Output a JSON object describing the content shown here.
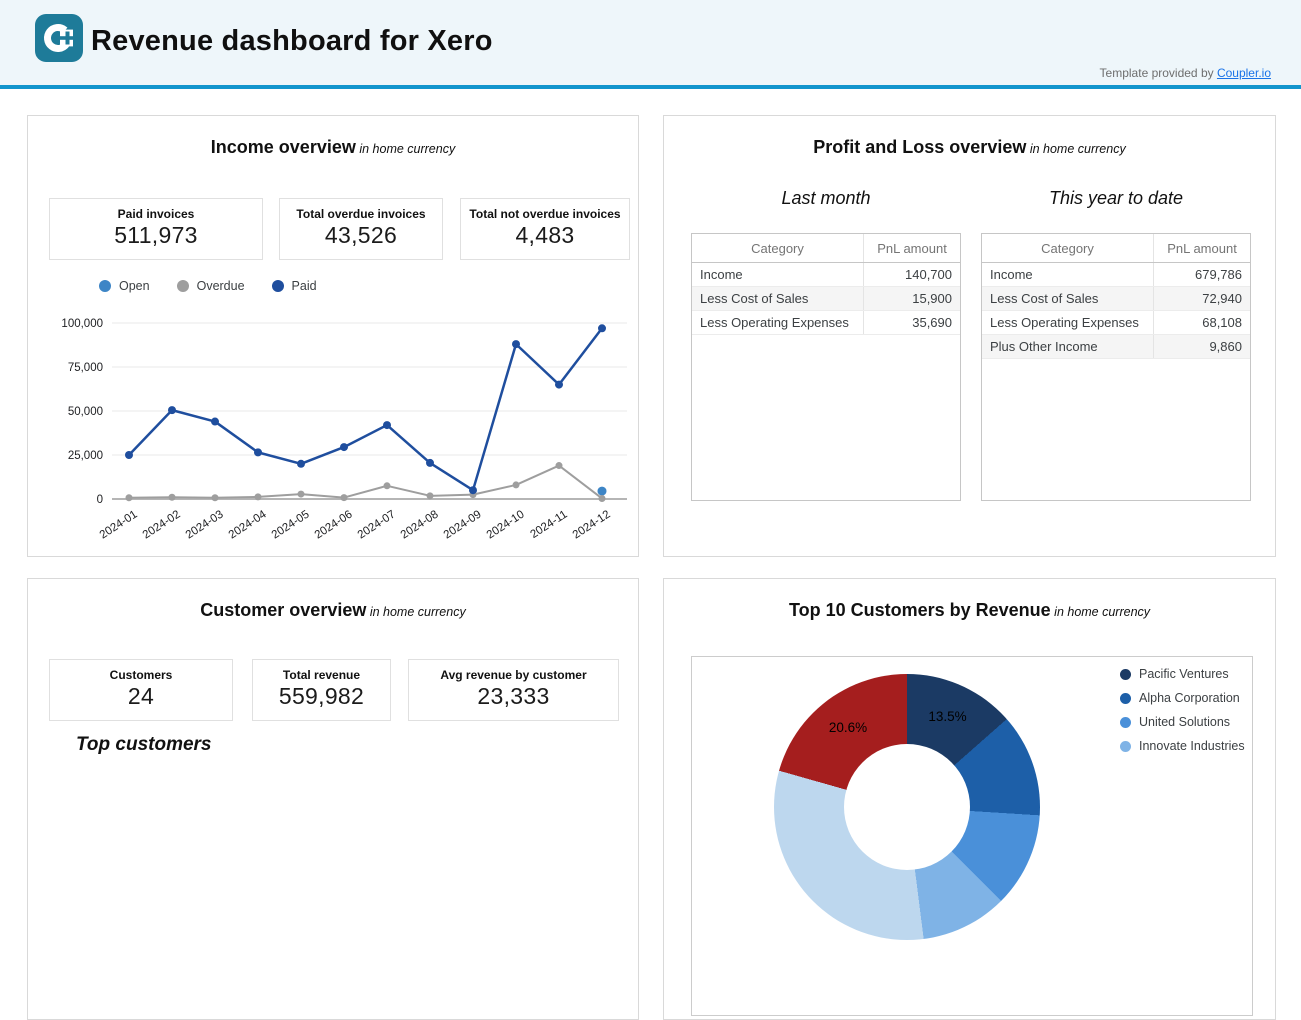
{
  "header": {
    "title": "Revenue dashboard for Xero",
    "template_note": "Template provided by ",
    "template_link_label": "Coupler.io",
    "colors": {
      "header_bg": "#eef6fa",
      "rule": "#1295cd",
      "logo_bg": "#1e7b99",
      "link": "#1a73e8"
    }
  },
  "panels": {
    "income": {
      "title": "Income overview",
      "subtitle": " in home currency",
      "scorecards": [
        {
          "label": "Paid invoices",
          "value": "511,973"
        },
        {
          "label": "Total overdue invoices",
          "value": "43,526"
        },
        {
          "label": "Total not overdue invoices",
          "value": "4,483"
        }
      ]
    },
    "pnl": {
      "title": "Profit and Loss overview",
      "subtitle": " in home currency",
      "tables": [
        {
          "caption": "Last month",
          "columns": [
            "Category",
            "PnL amount"
          ],
          "rows": [
            [
              "Income",
              "140,700"
            ],
            [
              "Less Cost of Sales",
              "15,900"
            ],
            [
              "Less Operating Expenses",
              "35,690"
            ]
          ]
        },
        {
          "caption": "This year to date",
          "columns": [
            "Category",
            "PnL amount"
          ],
          "rows": [
            [
              "Income",
              "679,786"
            ],
            [
              "Less Cost of Sales",
              "72,940"
            ],
            [
              "Less Operating Expenses",
              "68,108"
            ],
            [
              "Plus Other Income",
              "9,860"
            ]
          ]
        }
      ]
    },
    "customers": {
      "title": "Customer overview",
      "subtitle": " in home currency",
      "scorecards": [
        {
          "label": "Customers",
          "value": "24"
        },
        {
          "label": "Total revenue",
          "value": "559,982"
        },
        {
          "label": "Avg revenue by customer",
          "value": "23,333"
        }
      ],
      "section_label": "Top customers"
    },
    "top_customers": {
      "title": "Top 10 Customers by Revenue",
      "subtitle": " in home currency"
    }
  },
  "chart_data": [
    {
      "id": "income-invoices-by-month",
      "type": "line",
      "title": "Income overview in home currency",
      "x": [
        "2024-01",
        "2024-02",
        "2024-03",
        "2024-04",
        "2024-05",
        "2024-06",
        "2024-07",
        "2024-08",
        "2024-09",
        "2024-10",
        "2024-11",
        "2024-12"
      ],
      "series": [
        {
          "name": "Open",
          "color": "#3d85c6",
          "values": [
            null,
            null,
            null,
            null,
            null,
            null,
            null,
            null,
            null,
            null,
            null,
            4483
          ]
        },
        {
          "name": "Overdue",
          "color": "#9e9e9e",
          "values": [
            700,
            1000,
            700,
            1200,
            2800,
            800,
            7500,
            1800,
            2500,
            8000,
            19000,
            300
          ]
        },
        {
          "name": "Paid",
          "color": "#1f4e9e",
          "values": [
            25000,
            50500,
            44000,
            26500,
            20000,
            29500,
            42000,
            20500,
            5000,
            88000,
            65000,
            97000
          ]
        }
      ],
      "ylim": [
        0,
        100000
      ],
      "yticks": [
        "0",
        "25,000",
        "50,000",
        "75,000",
        "100,000"
      ],
      "grid": true,
      "legend_position": "top-left",
      "note": "Open/Overdue/Paid monthly values estimated from plotted point positions"
    },
    {
      "id": "top-10-customers-by-revenue",
      "type": "pie",
      "donut": true,
      "title": "Top 10 Customers by Revenue in home currency",
      "slices": [
        {
          "name": "Pacific Ventures",
          "pct": 13.5,
          "color": "#1b3a64",
          "label": "13.5%",
          "labeled": true
        },
        {
          "name": "Alpha Corporation",
          "pct": 12.5,
          "color": "#1d5fa8",
          "estimated": true
        },
        {
          "name": "United Solutions",
          "pct": 11.5,
          "color": "#4a90d9",
          "estimated": true
        },
        {
          "name": "Innovate Industries",
          "pct": 10.5,
          "color": "#7fb3e6",
          "estimated": true
        },
        {
          "name": "(slices below fold)",
          "pct": 31.4,
          "color": "#bdd7ee",
          "estimated": true
        },
        {
          "name": "(red slice)",
          "pct": 20.6,
          "color": "#a51e1e",
          "label": "20.6%",
          "labeled": true
        }
      ],
      "legend": [
        {
          "label": "Pacific Ventures",
          "color": "#1b3a64"
        },
        {
          "label": "Alpha Corporation",
          "color": "#1d5fa8"
        },
        {
          "label": "United Solutions",
          "color": "#4a90d9"
        },
        {
          "label": "Innovate Industries",
          "color": "#7fb3e6"
        }
      ],
      "legend_position": "right"
    }
  ]
}
